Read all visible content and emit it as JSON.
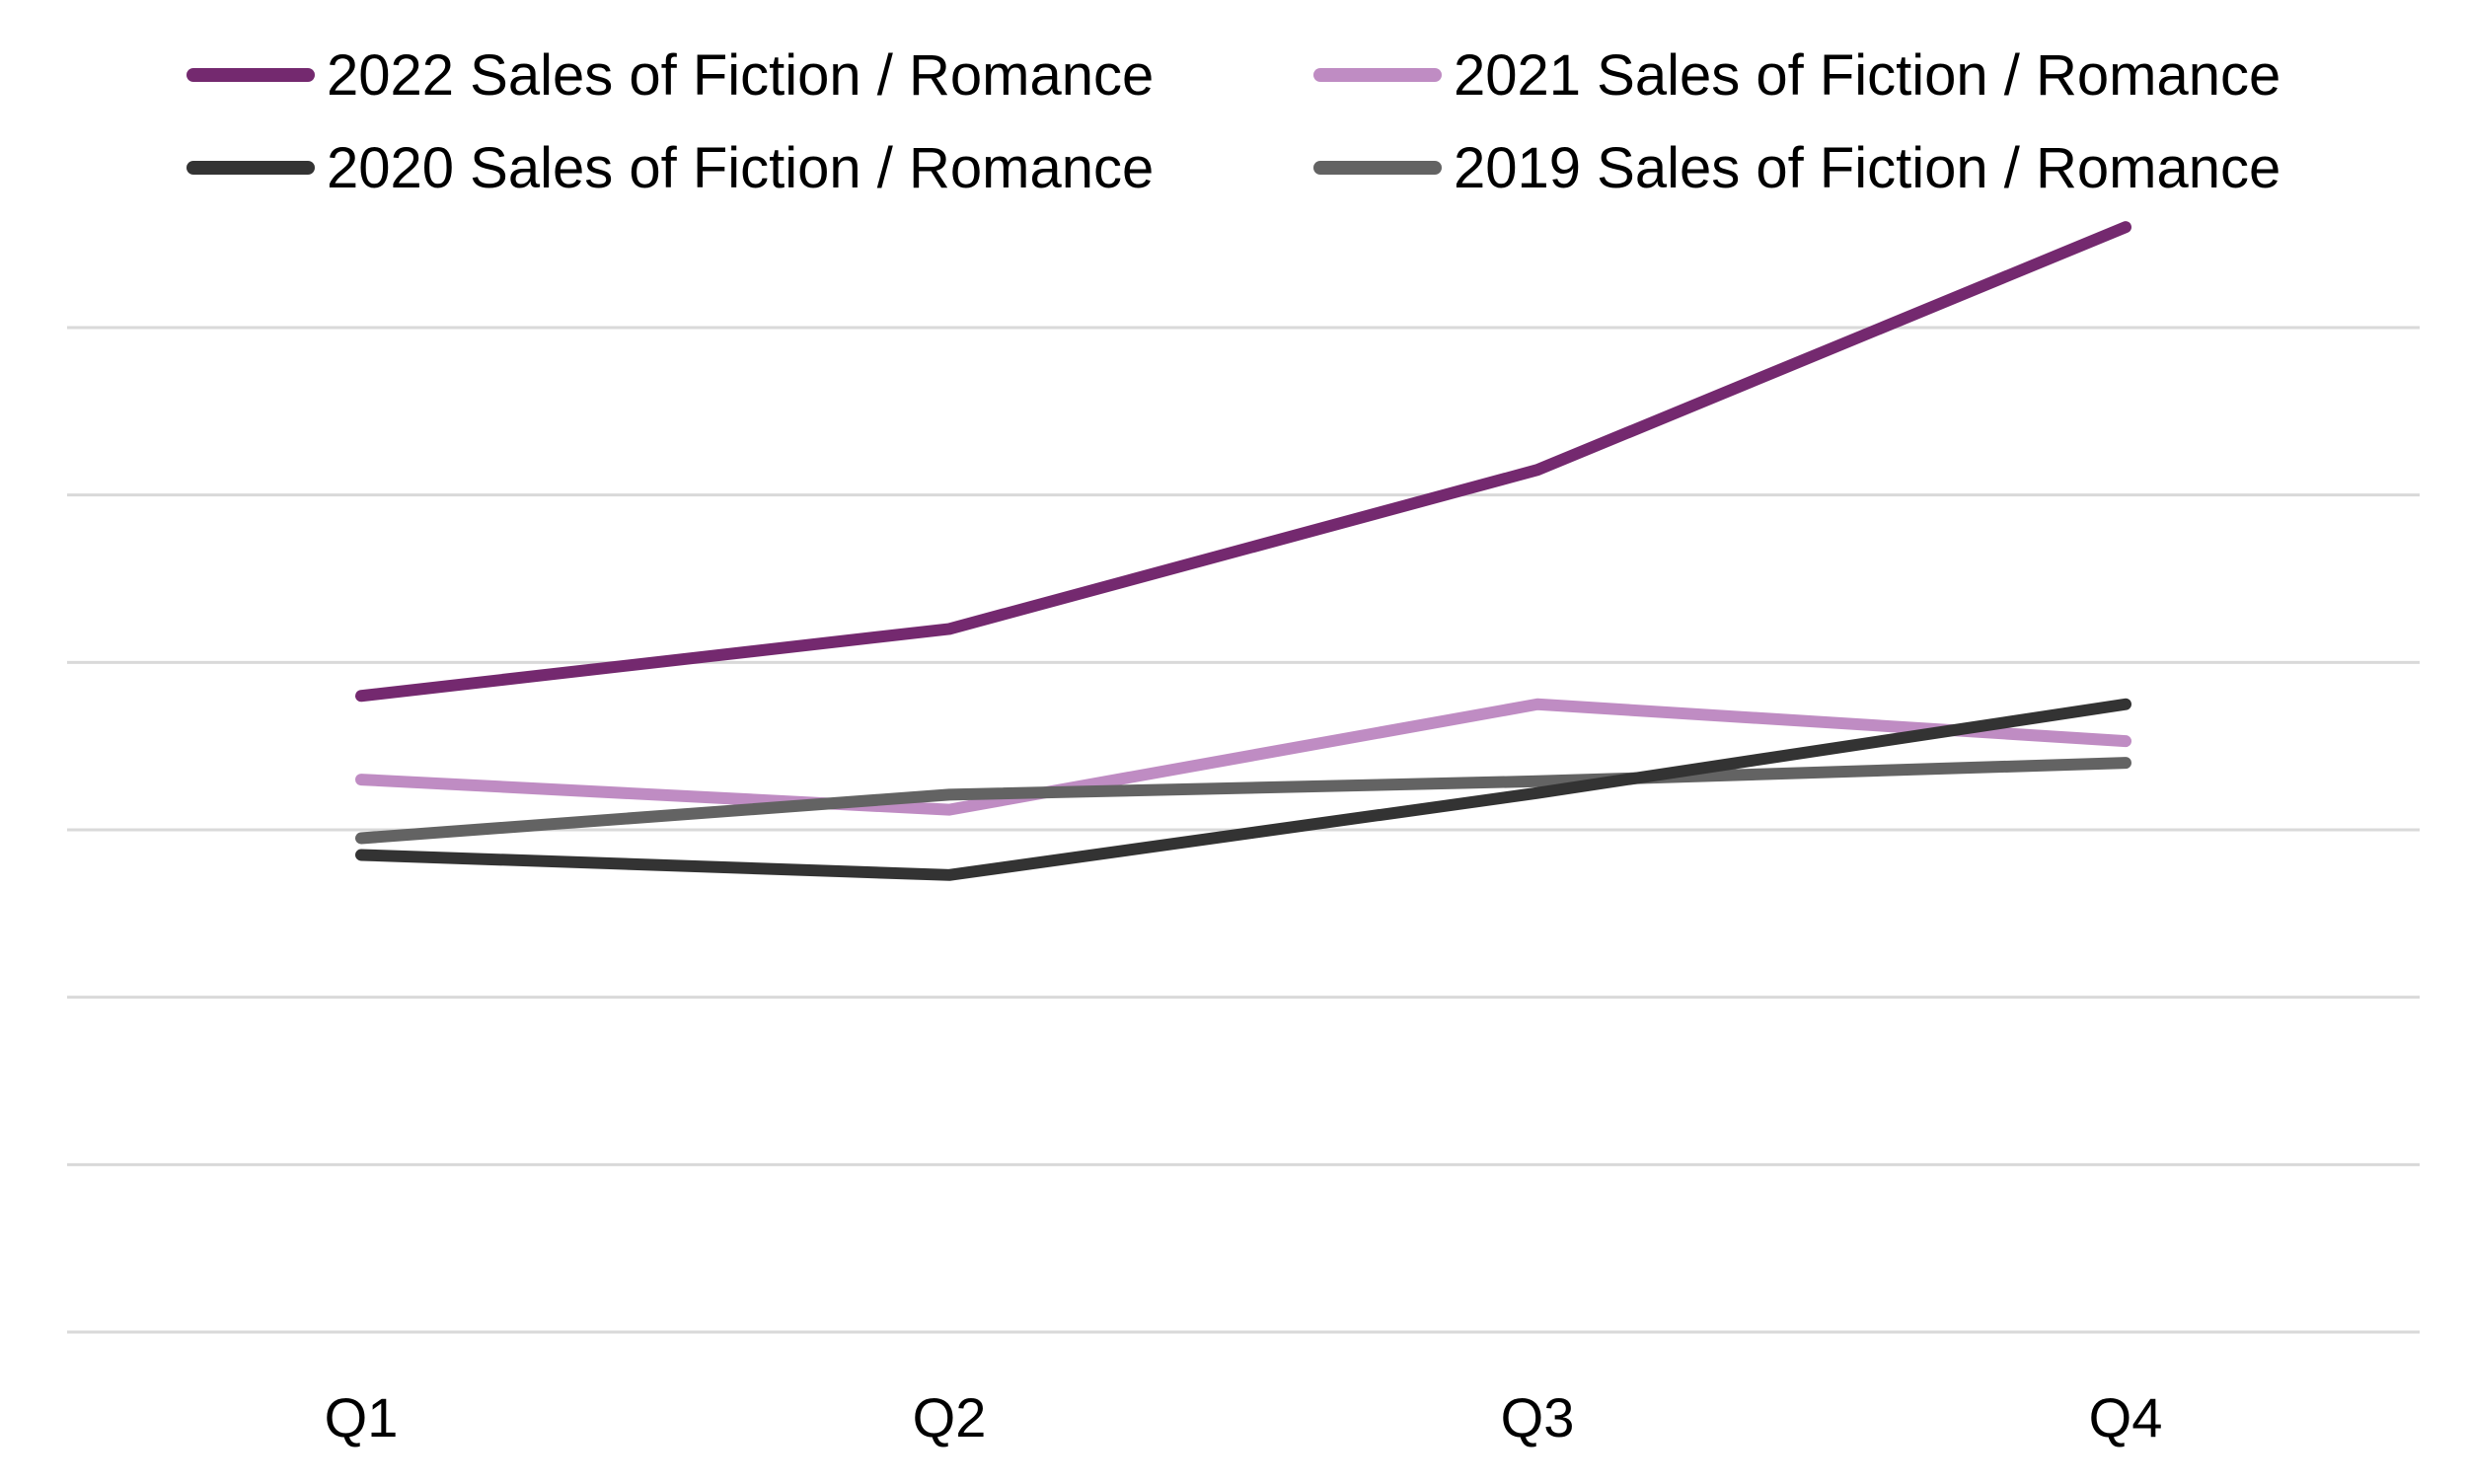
{
  "chart_data": {
    "type": "line",
    "categories": [
      "Q1",
      "Q2",
      "Q3",
      "Q4"
    ],
    "series": [
      {
        "name": "2022 Sales of Fiction / Romance",
        "color": "#74296f",
        "values": [
          3.8,
          4.2,
          5.15,
          6.6
        ]
      },
      {
        "name": "2021 Sales of Fiction / Romance",
        "color": "#bf8cc3",
        "values": [
          3.3,
          3.12,
          3.75,
          3.53
        ]
      },
      {
        "name": "2020 Sales of Fiction / Romance",
        "color": "#333333",
        "values": [
          2.85,
          2.73,
          3.22,
          3.75
        ]
      },
      {
        "name": "2019 Sales of Fiction / Romance",
        "color": "#636363",
        "values": [
          2.95,
          3.21,
          3.29,
          3.4
        ]
      }
    ],
    "ylim": [
      0,
      6
    ],
    "grid": true,
    "legend_position": "top",
    "xlabel": "",
    "ylabel": ""
  }
}
